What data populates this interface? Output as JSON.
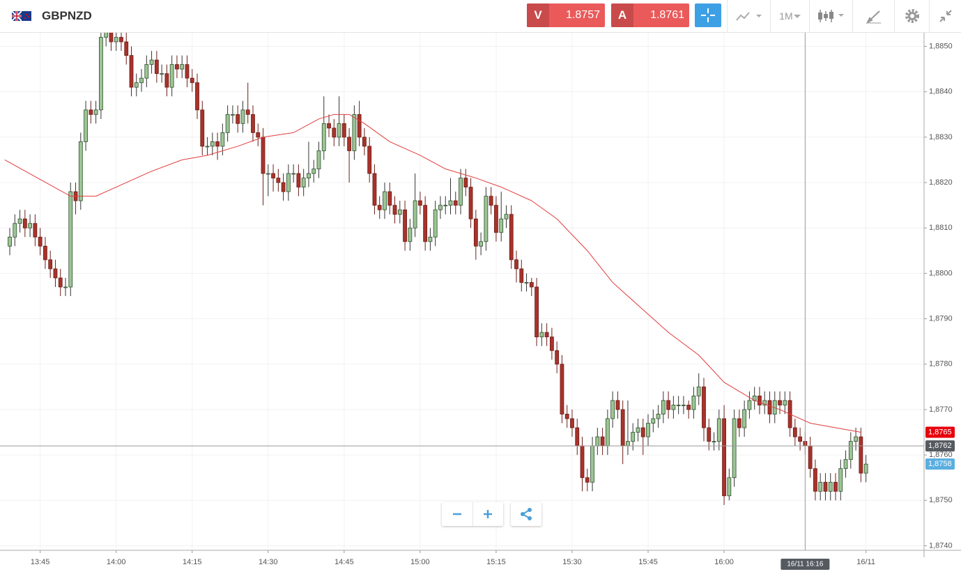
{
  "header": {
    "symbol": "GBPNZD",
    "sell": {
      "letter": "V",
      "price": 1.8757
    },
    "buy": {
      "letter": "A",
      "price": 1.8761
    },
    "timeframe": "1M"
  },
  "chart_data": {
    "type": "candlestick",
    "up_color": "#9cc594",
    "down_color": "#a8332b",
    "grid": true,
    "candles": [
      [
        1.8806,
        1.881,
        1.8804,
        1.8808
      ],
      [
        1.8808,
        1.8813,
        1.8806,
        1.8811
      ],
      [
        1.8811,
        1.8814,
        1.8809,
        1.8812
      ],
      [
        1.8812,
        1.8814,
        1.8808,
        1.881
      ],
      [
        1.881,
        1.8813,
        1.8808,
        1.8811
      ],
      [
        1.8811,
        1.8813,
        1.8806,
        1.8808
      ],
      [
        1.8808,
        1.881,
        1.8804,
        1.8806
      ],
      [
        1.8806,
        1.8808,
        1.8801,
        1.8803
      ],
      [
        1.8803,
        1.8805,
        1.8799,
        1.8801
      ],
      [
        1.8801,
        1.8803,
        1.8797,
        1.8799
      ],
      [
        1.8799,
        1.8801,
        1.8795,
        1.8797
      ],
      [
        1.8797,
        1.8799,
        1.8795,
        1.8797
      ],
      [
        1.8797,
        1.882,
        1.8795,
        1.8818
      ],
      [
        1.8818,
        1.882,
        1.8813,
        1.8816
      ],
      [
        1.8816,
        1.8831,
        1.8814,
        1.8829
      ],
      [
        1.8829,
        1.8838,
        1.8827,
        1.8836
      ],
      [
        1.8836,
        1.8838,
        1.8833,
        1.8835
      ],
      [
        1.8835,
        1.8838,
        1.8833,
        1.8836
      ],
      [
        1.8836,
        1.8854,
        1.8834,
        1.8852
      ],
      [
        1.8852,
        1.8856,
        1.885,
        1.8854
      ],
      [
        1.8854,
        1.8856,
        1.8849,
        1.8851
      ],
      [
        1.8851,
        1.8854,
        1.8849,
        1.8852
      ],
      [
        1.8852,
        1.8854,
        1.8849,
        1.8851
      ],
      [
        1.8851,
        1.8853,
        1.8846,
        1.8848
      ],
      [
        1.8848,
        1.885,
        1.8839,
        1.8841
      ],
      [
        1.8841,
        1.8844,
        1.8839,
        1.8842
      ],
      [
        1.8842,
        1.8845,
        1.884,
        1.8843
      ],
      [
        1.8843,
        1.8848,
        1.8841,
        1.8846
      ],
      [
        1.8846,
        1.8849,
        1.8844,
        1.8847
      ],
      [
        1.8847,
        1.8849,
        1.8842,
        1.8844
      ],
      [
        1.8844,
        1.8846,
        1.8842,
        1.8844
      ],
      [
        1.8844,
        1.8846,
        1.8839,
        1.8841
      ],
      [
        1.8841,
        1.8848,
        1.8839,
        1.8846
      ],
      [
        1.8846,
        1.8848,
        1.8843,
        1.8845
      ],
      [
        1.8845,
        1.8848,
        1.8843,
        1.8846
      ],
      [
        1.8846,
        1.8848,
        1.8841,
        1.8843
      ],
      [
        1.8843,
        1.8845,
        1.884,
        1.8842
      ],
      [
        1.8842,
        1.8844,
        1.8834,
        1.8836
      ],
      [
        1.8836,
        1.8838,
        1.8826,
        1.8828
      ],
      [
        1.8828,
        1.883,
        1.8826,
        1.8828
      ],
      [
        1.8828,
        1.8831,
        1.8826,
        1.8829
      ],
      [
        1.8829,
        1.8831,
        1.8825,
        1.8828
      ],
      [
        1.8828,
        1.8833,
        1.8826,
        1.8831
      ],
      [
        1.8831,
        1.8837,
        1.8829,
        1.8835
      ],
      [
        1.8835,
        1.8837,
        1.8833,
        1.8835
      ],
      [
        1.8835,
        1.8837,
        1.8831,
        1.8833
      ],
      [
        1.8833,
        1.8838,
        1.8831,
        1.8836
      ],
      [
        1.8836,
        1.8842,
        1.8833,
        1.8835
      ],
      [
        1.8835,
        1.8837,
        1.8829,
        1.8831
      ],
      [
        1.8831,
        1.8833,
        1.8828,
        1.883
      ],
      [
        1.883,
        1.8832,
        1.8815,
        1.8822
      ],
      [
        1.8822,
        1.8824,
        1.8817,
        1.8822
      ],
      [
        1.8822,
        1.8824,
        1.8818,
        1.8821
      ],
      [
        1.8821,
        1.8823,
        1.8818,
        1.882
      ],
      [
        1.882,
        1.8822,
        1.8816,
        1.8818
      ],
      [
        1.8818,
        1.8824,
        1.8816,
        1.8822
      ],
      [
        1.8822,
        1.8824,
        1.882,
        1.8822
      ],
      [
        1.8822,
        1.8824,
        1.8817,
        1.8819
      ],
      [
        1.8819,
        1.8823,
        1.8817,
        1.8821
      ],
      [
        1.8821,
        1.8829,
        1.8819,
        1.8822
      ],
      [
        1.8822,
        1.8825,
        1.882,
        1.8823
      ],
      [
        1.8823,
        1.8829,
        1.8821,
        1.8827
      ],
      [
        1.8827,
        1.8839,
        1.8825,
        1.8833
      ],
      [
        1.8833,
        1.8835,
        1.883,
        1.8832
      ],
      [
        1.8832,
        1.8834,
        1.8828,
        1.883
      ],
      [
        1.883,
        1.8839,
        1.8828,
        1.8833
      ],
      [
        1.8833,
        1.8835,
        1.8828,
        1.883
      ],
      [
        1.883,
        1.8832,
        1.882,
        1.8827
      ],
      [
        1.8827,
        1.8837,
        1.8825,
        1.8835
      ],
      [
        1.8835,
        1.8838,
        1.8828,
        1.883
      ],
      [
        1.883,
        1.8832,
        1.8826,
        1.8828
      ],
      [
        1.8828,
        1.883,
        1.882,
        1.8822
      ],
      [
        1.8822,
        1.8824,
        1.8813,
        1.8815
      ],
      [
        1.8815,
        1.8817,
        1.8812,
        1.8814
      ],
      [
        1.8814,
        1.882,
        1.8812,
        1.8818
      ],
      [
        1.8818,
        1.882,
        1.8813,
        1.8815
      ],
      [
        1.8815,
        1.8817,
        1.8811,
        1.8813
      ],
      [
        1.8813,
        1.8816,
        1.8811,
        1.8814
      ],
      [
        1.8814,
        1.8816,
        1.8805,
        1.8807
      ],
      [
        1.8807,
        1.8812,
        1.8805,
        1.881
      ],
      [
        1.881,
        1.8822,
        1.8808,
        1.8816
      ],
      [
        1.8816,
        1.8818,
        1.8813,
        1.8815
      ],
      [
        1.8815,
        1.8817,
        1.8805,
        1.8807
      ],
      [
        1.8807,
        1.881,
        1.8805,
        1.8808
      ],
      [
        1.8808,
        1.8816,
        1.8806,
        1.8814
      ],
      [
        1.8814,
        1.8817,
        1.8812,
        1.8815
      ],
      [
        1.8815,
        1.8817,
        1.8813,
        1.8815
      ],
      [
        1.8815,
        1.8821,
        1.8813,
        1.8816
      ],
      [
        1.8816,
        1.8818,
        1.8813,
        1.8815
      ],
      [
        1.8815,
        1.8823,
        1.8813,
        1.8821
      ],
      [
        1.8821,
        1.8823,
        1.8817,
        1.8819
      ],
      [
        1.8819,
        1.8821,
        1.881,
        1.8812
      ],
      [
        1.8812,
        1.8814,
        1.8803,
        1.8806
      ],
      [
        1.8806,
        1.8809,
        1.8804,
        1.8807
      ],
      [
        1.8807,
        1.8819,
        1.8805,
        1.8817
      ],
      [
        1.8817,
        1.8819,
        1.8813,
        1.8815
      ],
      [
        1.8815,
        1.8817,
        1.8807,
        1.8809
      ],
      [
        1.8809,
        1.8818,
        1.8807,
        1.8812
      ],
      [
        1.8812,
        1.8815,
        1.881,
        1.8813
      ],
      [
        1.8813,
        1.8815,
        1.8801,
        1.8803
      ],
      [
        1.8803,
        1.8805,
        1.8798,
        1.8801
      ],
      [
        1.8801,
        1.8803,
        1.8796,
        1.8798
      ],
      [
        1.8798,
        1.88,
        1.8796,
        1.8798
      ],
      [
        1.8798,
        1.8799,
        1.8795,
        1.8797
      ],
      [
        1.8797,
        1.8799,
        1.8784,
        1.8786
      ],
      [
        1.8786,
        1.8789,
        1.8784,
        1.8787
      ],
      [
        1.8787,
        1.8789,
        1.8784,
        1.8786
      ],
      [
        1.8786,
        1.8788,
        1.8781,
        1.8783
      ],
      [
        1.8783,
        1.8785,
        1.8778,
        1.878
      ],
      [
        1.878,
        1.8782,
        1.8767,
        1.8769
      ],
      [
        1.8769,
        1.8771,
        1.8766,
        1.8768
      ],
      [
        1.8768,
        1.877,
        1.8764,
        1.8766
      ],
      [
        1.8766,
        1.8768,
        1.876,
        1.8762
      ],
      [
        1.8762,
        1.8764,
        1.8752,
        1.8755
      ],
      [
        1.8755,
        1.8757,
        1.8752,
        1.8754
      ],
      [
        1.8754,
        1.8764,
        1.8752,
        1.8762
      ],
      [
        1.8762,
        1.8766,
        1.876,
        1.8764
      ],
      [
        1.8764,
        1.8766,
        1.876,
        1.8762
      ],
      [
        1.8762,
        1.877,
        1.876,
        1.8768
      ],
      [
        1.8768,
        1.8774,
        1.8766,
        1.8772
      ],
      [
        1.8772,
        1.8774,
        1.8768,
        1.877
      ],
      [
        1.877,
        1.8772,
        1.8758,
        1.8762
      ],
      [
        1.8762,
        1.8772,
        1.876,
        1.8763
      ],
      [
        1.8763,
        1.8767,
        1.8761,
        1.8765
      ],
      [
        1.8765,
        1.8768,
        1.8763,
        1.8766
      ],
      [
        1.8766,
        1.8768,
        1.876,
        1.8764
      ],
      [
        1.8764,
        1.8769,
        1.8762,
        1.8767
      ],
      [
        1.8767,
        1.877,
        1.8765,
        1.8768
      ],
      [
        1.8768,
        1.8771,
        1.8766,
        1.8769
      ],
      [
        1.8769,
        1.8774,
        1.8767,
        1.8772
      ],
      [
        1.8772,
        1.8774,
        1.8768,
        1.877
      ],
      [
        1.877,
        1.8773,
        1.8768,
        1.8771
      ],
      [
        1.8771,
        1.8773,
        1.8769,
        1.8771
      ],
      [
        1.8771,
        1.8773,
        1.8769,
        1.8771
      ],
      [
        1.8771,
        1.8772,
        1.8768,
        1.877
      ],
      [
        1.877,
        1.8775,
        1.8768,
        1.8773
      ],
      [
        1.8773,
        1.8778,
        1.8771,
        1.8775
      ],
      [
        1.8775,
        1.8777,
        1.8763,
        1.8766
      ],
      [
        1.8766,
        1.8768,
        1.8761,
        1.8763
      ],
      [
        1.8763,
        1.8765,
        1.8761,
        1.8763
      ],
      [
        1.8763,
        1.877,
        1.8761,
        1.8768
      ],
      [
        1.8768,
        1.8771,
        1.8749,
        1.8751
      ],
      [
        1.8751,
        1.8757,
        1.875,
        1.8755
      ],
      [
        1.8755,
        1.877,
        1.8753,
        1.8768
      ],
      [
        1.8768,
        1.877,
        1.8764,
        1.8766
      ],
      [
        1.8766,
        1.8772,
        1.8764,
        1.877
      ],
      [
        1.877,
        1.8774,
        1.8768,
        1.8772
      ],
      [
        1.8772,
        1.8775,
        1.877,
        1.8773
      ],
      [
        1.8773,
        1.8775,
        1.8769,
        1.8771
      ],
      [
        1.8771,
        1.8774,
        1.8769,
        1.8772
      ],
      [
        1.8772,
        1.8774,
        1.8767,
        1.8769
      ],
      [
        1.8769,
        1.8774,
        1.8767,
        1.8772
      ],
      [
        1.8772,
        1.8774,
        1.8769,
        1.8771
      ],
      [
        1.8771,
        1.8774,
        1.8769,
        1.8772
      ],
      [
        1.8772,
        1.8774,
        1.8764,
        1.8766
      ],
      [
        1.8766,
        1.8768,
        1.8762,
        1.8764
      ],
      [
        1.8764,
        1.8766,
        1.8761,
        1.8763
      ],
      [
        1.8763,
        1.8765,
        1.876,
        1.8762
      ],
      [
        1.8762,
        1.8764,
        1.8755,
        1.8757
      ],
      [
        1.8757,
        1.8759,
        1.875,
        1.8752
      ],
      [
        1.8752,
        1.8756,
        1.875,
        1.8754
      ],
      [
        1.8754,
        1.8756,
        1.875,
        1.8752
      ],
      [
        1.8752,
        1.8756,
        1.875,
        1.8754
      ],
      [
        1.8754,
        1.8756,
        1.875,
        1.8752
      ],
      [
        1.8752,
        1.8759,
        1.875,
        1.8757
      ],
      [
        1.8757,
        1.8761,
        1.8755,
        1.8759
      ],
      [
        1.8759,
        1.8765,
        1.8757,
        1.8763
      ],
      [
        1.8763,
        1.8766,
        1.8761,
        1.8764
      ],
      [
        1.8764,
        1.8766,
        1.8754,
        1.8756
      ],
      [
        1.8756,
        1.876,
        1.8754,
        1.8758
      ]
    ],
    "ma": {
      "color": "#e23b3b",
      "x": [
        -1,
        12,
        17,
        23,
        28,
        34,
        39,
        45,
        50,
        56,
        61,
        64,
        67,
        70,
        75,
        81,
        86,
        92,
        97,
        103,
        108,
        114,
        119,
        125,
        130,
        136,
        141,
        147,
        152,
        158,
        163,
        168
      ],
      "values": [
        1.8825,
        1.8817,
        1.8817,
        1.882,
        1.88225,
        1.8825,
        1.8826,
        1.8828,
        1.883,
        1.8831,
        1.8834,
        1.8835,
        1.8835,
        1.8833,
        1.8829,
        1.8826,
        1.8823,
        1.8821,
        1.8819,
        1.8816,
        1.8812,
        1.8805,
        1.8798,
        1.8792,
        1.8787,
        1.8782,
        1.8776,
        1.8772,
        1.877,
        1.8767,
        1.8766,
        1.8765
      ]
    },
    "xlim": [
      -1.93,
      180.47
    ],
    "xticks": [
      {
        "value": 6,
        "label": "13:45"
      },
      {
        "value": 21,
        "label": "14:00"
      },
      {
        "value": 36,
        "label": "14:15"
      },
      {
        "value": 51,
        "label": "14:30"
      },
      {
        "value": 66,
        "label": "14:45"
      },
      {
        "value": 81,
        "label": "15:00"
      },
      {
        "value": 96,
        "label": "15:15"
      },
      {
        "value": 111,
        "label": "15:30"
      },
      {
        "value": 126,
        "label": "15:45"
      },
      {
        "value": 141,
        "label": "16:00"
      },
      {
        "value": 169,
        "label": "16/11"
      }
    ],
    "ylim": [
      1.8739,
      1.8853
    ],
    "yticks": [
      {
        "value": 1.874,
        "label": "1,8740"
      },
      {
        "value": 1.875,
        "label": "1,8750"
      },
      {
        "value": 1.876,
        "label": "1,8760"
      },
      {
        "value": 1.877,
        "label": "1,8770"
      },
      {
        "value": 1.878,
        "label": "1,8780"
      },
      {
        "value": 1.879,
        "label": "1,8790"
      },
      {
        "value": 1.88,
        "label": "1,8800"
      },
      {
        "value": 1.881,
        "label": "1,8810"
      },
      {
        "value": 1.882,
        "label": "1,8820"
      },
      {
        "value": 1.883,
        "label": "1,8830"
      },
      {
        "value": 1.884,
        "label": "1,8840"
      },
      {
        "value": 1.885,
        "label": "1,8850"
      }
    ],
    "price_labels": [
      {
        "value": 1.8765,
        "label": "1,8765",
        "color": "#e8000b"
      },
      {
        "value": 1.8762,
        "label": "1,8762",
        "color": "#555a60"
      },
      {
        "value": 1.8758,
        "label": "1,8758",
        "color": "#5aaee0"
      }
    ],
    "crosshair": {
      "x": 157,
      "label": "16/11 16:16"
    }
  }
}
